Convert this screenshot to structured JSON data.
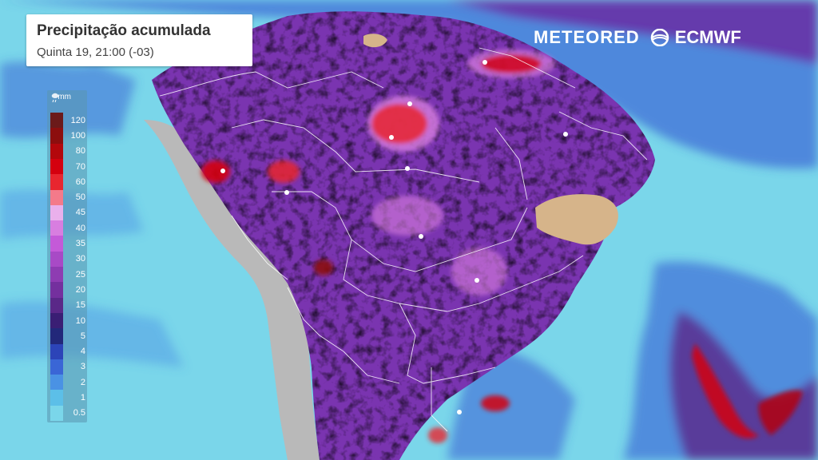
{
  "title": {
    "main": "Precipitação acumulada",
    "subtitle": "Quinta 19, 21:00 (-03)"
  },
  "branding": {
    "meteored": "METEORED",
    "ecmwf": "ECMWF"
  },
  "legend": {
    "unit": "mm",
    "unit_icon": "rain-gauge-icon",
    "levels": [
      {
        "label": "120",
        "color": "#6b1a1a"
      },
      {
        "label": "100",
        "color": "#8c0e0e"
      },
      {
        "label": "80",
        "color": "#b3070c"
      },
      {
        "label": "70",
        "color": "#d4000f"
      },
      {
        "label": "60",
        "color": "#e8262f"
      },
      {
        "label": "50",
        "color": "#f47a8a"
      },
      {
        "label": "45",
        "color": "#eab0ec"
      },
      {
        "label": "40",
        "color": "#d87ee0"
      },
      {
        "label": "35",
        "color": "#c45ad8"
      },
      {
        "label": "30",
        "color": "#a84ac6"
      },
      {
        "label": "25",
        "color": "#8e3cb2"
      },
      {
        "label": "20",
        "color": "#74309e"
      },
      {
        "label": "15",
        "color": "#5a2888"
      },
      {
        "label": "10",
        "color": "#3a1e74"
      },
      {
        "label": "5",
        "color": "#22287a"
      },
      {
        "label": "4",
        "color": "#2c44b8"
      },
      {
        "label": "3",
        "color": "#3a66d6"
      },
      {
        "label": "2",
        "color": "#4a92e4"
      },
      {
        "label": "1",
        "color": "#5cbfe8"
      },
      {
        "label": "0.5",
        "color": "#7ad6ea"
      }
    ]
  },
  "map_colors": {
    "ocean_light": "#7ad6ea",
    "ocean_mid": "#5cbfe8",
    "ocean_blue": "#3a66d6",
    "land_dry": "#b9b9b9",
    "desert_tan": "#d6b48a",
    "rain_purple": "#7a34b0",
    "rain_dark": "#3a1e74",
    "rain_pink": "#d87ee0",
    "rain_red": "#d4000f",
    "border_line": "#ffffff"
  }
}
